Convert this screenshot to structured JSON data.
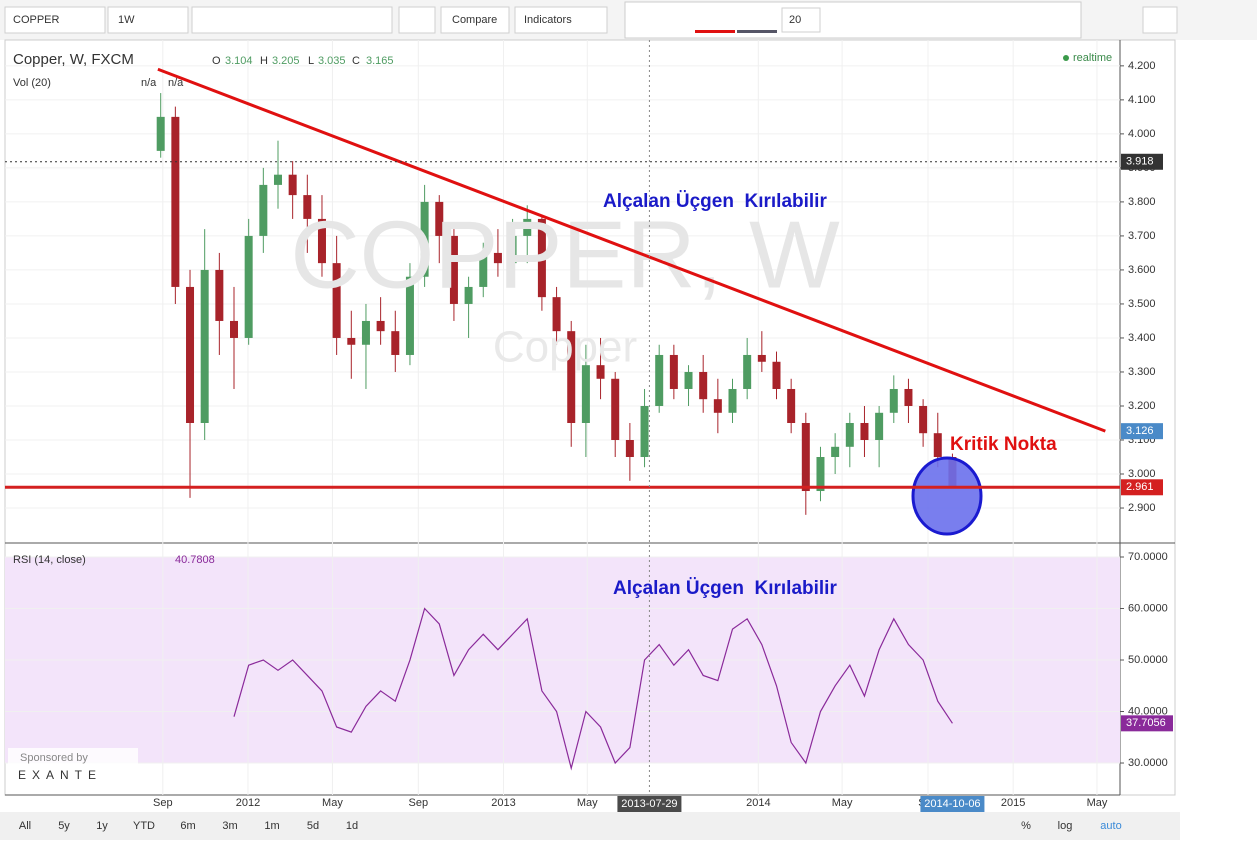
{
  "toolbar": {
    "symbol": "COPPER",
    "interval": "1W",
    "compare": "Compare",
    "indicators": "Indicators",
    "font_size": "20"
  },
  "footer": {
    "ranges": [
      "All",
      "5y",
      "1y",
      "YTD",
      "6m",
      "3m",
      "1m",
      "5d",
      "1d"
    ],
    "options": [
      "%",
      "log",
      "auto"
    ],
    "sponsor": "Sponsored by",
    "sponsor_name": "EXANTE"
  },
  "chart_data": [
    {
      "type": "candlestick",
      "title": "Copper, W, FXCM",
      "status": "realtime",
      "ohlc_labels": [
        "O",
        "H",
        "L",
        "C"
      ],
      "ohlc_values": [
        3.104,
        3.205,
        3.035,
        3.165
      ],
      "volume_title": "Vol (20)",
      "volume_values": [
        "n/a",
        "n/a"
      ],
      "watermark": [
        "COPPER, W",
        "Copper"
      ],
      "up_color": "#4f9c62",
      "down_color": "#a8232a",
      "grid": true,
      "x": [
        "2011-08-29",
        "2011-09-19",
        "2011-10-10",
        "2011-10-31",
        "2011-11-21",
        "2011-12-12",
        "2012-01-02",
        "2012-01-23",
        "2012-02-13",
        "2012-03-05",
        "2012-03-26",
        "2012-04-16",
        "2012-05-07",
        "2012-05-28",
        "2012-06-18",
        "2012-07-09",
        "2012-07-30",
        "2012-08-20",
        "2012-09-10",
        "2012-10-01",
        "2012-10-22",
        "2012-11-12",
        "2012-12-03",
        "2012-12-24",
        "2013-01-14",
        "2013-02-04",
        "2013-02-25",
        "2013-03-18",
        "2013-04-08",
        "2013-04-29",
        "2013-05-20",
        "2013-06-10",
        "2013-07-01",
        "2013-07-22",
        "2013-08-12",
        "2013-09-02",
        "2013-09-23",
        "2013-10-14",
        "2013-11-04",
        "2013-11-25",
        "2013-12-16",
        "2014-01-06",
        "2014-01-27",
        "2014-02-17",
        "2014-03-10",
        "2014-03-31",
        "2014-04-21",
        "2014-05-12",
        "2014-06-02",
        "2014-06-23",
        "2014-07-14",
        "2014-08-04",
        "2014-08-25",
        "2014-09-15",
        "2014-10-06"
      ],
      "open": [
        3.95,
        4.05,
        3.55,
        3.15,
        3.6,
        3.45,
        3.4,
        3.7,
        3.85,
        3.88,
        3.82,
        3.75,
        3.62,
        3.4,
        3.38,
        3.45,
        3.42,
        3.35,
        3.58,
        3.8,
        3.7,
        3.5,
        3.55,
        3.65,
        3.62,
        3.7,
        3.75,
        3.52,
        3.42,
        3.15,
        3.32,
        3.28,
        3.1,
        3.05,
        3.2,
        3.35,
        3.25,
        3.3,
        3.22,
        3.18,
        3.25,
        3.35,
        3.33,
        3.25,
        3.15,
        2.95,
        3.05,
        3.08,
        3.15,
        3.1,
        3.18,
        3.25,
        3.2,
        3.12,
        3.05
      ],
      "high": [
        4.12,
        4.08,
        3.6,
        3.72,
        3.65,
        3.55,
        3.75,
        3.9,
        3.98,
        3.92,
        3.88,
        3.82,
        3.7,
        3.48,
        3.5,
        3.52,
        3.48,
        3.62,
        3.85,
        3.82,
        3.72,
        3.58,
        3.68,
        3.72,
        3.75,
        3.79,
        3.76,
        3.55,
        3.45,
        3.38,
        3.4,
        3.3,
        3.15,
        3.25,
        3.38,
        3.38,
        3.32,
        3.35,
        3.28,
        3.28,
        3.4,
        3.42,
        3.36,
        3.28,
        3.18,
        3.08,
        3.12,
        3.18,
        3.2,
        3.2,
        3.29,
        3.28,
        3.22,
        3.18,
        3.06
      ],
      "low": [
        3.93,
        3.5,
        2.93,
        3.1,
        3.35,
        3.25,
        3.38,
        3.65,
        3.78,
        3.75,
        3.65,
        3.58,
        3.35,
        3.28,
        3.25,
        3.38,
        3.3,
        3.32,
        3.55,
        3.62,
        3.45,
        3.4,
        3.52,
        3.58,
        3.58,
        3.62,
        3.48,
        3.38,
        3.08,
        3.05,
        3.22,
        3.05,
        2.98,
        3.02,
        3.18,
        3.22,
        3.2,
        3.18,
        3.12,
        3.15,
        3.22,
        3.3,
        3.22,
        3.12,
        2.88,
        2.92,
        3.0,
        3.02,
        3.05,
        3.02,
        3.15,
        3.15,
        3.08,
        3.02,
        2.96
      ],
      "close": [
        4.05,
        3.55,
        3.15,
        3.6,
        3.45,
        3.4,
        3.7,
        3.85,
        3.88,
        3.82,
        3.75,
        3.62,
        3.4,
        3.38,
        3.45,
        3.42,
        3.35,
        3.58,
        3.8,
        3.7,
        3.5,
        3.55,
        3.65,
        3.62,
        3.7,
        3.75,
        3.52,
        3.42,
        3.15,
        3.32,
        3.28,
        3.1,
        3.05,
        3.2,
        3.35,
        3.25,
        3.3,
        3.22,
        3.18,
        3.25,
        3.35,
        3.33,
        3.25,
        3.15,
        2.95,
        3.05,
        3.08,
        3.15,
        3.1,
        3.18,
        3.25,
        3.2,
        3.12,
        3.05,
        2.961
      ],
      "xlim": [
        "2011-01-18",
        "2015-06-03"
      ],
      "xticks": [
        {
          "value": "2011-09-01",
          "label": "Sep"
        },
        {
          "value": "2012-01-01",
          "label": "2012"
        },
        {
          "value": "2012-05-01",
          "label": "May"
        },
        {
          "value": "2012-09-01",
          "label": "Sep"
        },
        {
          "value": "2013-01-01",
          "label": "2013"
        },
        {
          "value": "2013-05-01",
          "label": "May"
        },
        {
          "value": "2014-01-01",
          "label": "2014"
        },
        {
          "value": "2014-05-01",
          "label": "May"
        },
        {
          "value": "2014-09-01",
          "label": "Sep"
        },
        {
          "value": "2015-01-01",
          "label": "2015"
        },
        {
          "value": "2015-05-01",
          "label": "May"
        }
      ],
      "crosshair_x": [
        "2013-07-29",
        "2014-10-06"
      ],
      "ylim": [
        2.806,
        4.276
      ],
      "yticks": [
        {
          "value": 2.9,
          "label": "2.900"
        },
        {
          "value": 3.0,
          "label": "3.000"
        },
        {
          "value": 3.1,
          "label": "3.100"
        },
        {
          "value": 3.2,
          "label": "3.200"
        },
        {
          "value": 3.3,
          "label": "3.300"
        },
        {
          "value": 3.4,
          "label": "3.400"
        },
        {
          "value": 3.5,
          "label": "3.500"
        },
        {
          "value": 3.6,
          "label": "3.600"
        },
        {
          "value": 3.7,
          "label": "3.700"
        },
        {
          "value": 3.8,
          "label": "3.800"
        },
        {
          "value": 3.9,
          "label": "3.900"
        },
        {
          "value": 4.0,
          "label": "4.000"
        },
        {
          "value": 4.1,
          "label": "4.100"
        },
        {
          "value": 4.2,
          "label": "4.200"
        }
      ],
      "price_labels": [
        {
          "value": 3.918,
          "color": "#333333",
          "line": "dashed"
        },
        {
          "value": 3.126,
          "color": "#4a8ac8",
          "line": "none"
        },
        {
          "value": 2.961,
          "color": "#d42020",
          "line": "solid"
        }
      ],
      "trendline": {
        "x": [
          "2011-08-25",
          "2015-05-13"
        ],
        "y": [
          4.19,
          3.126
        ],
        "color": "#e01010"
      },
      "annotations": [
        {
          "text": "Alçalan Üçgen  Kırılabilir",
          "color": "#1a1ac8"
        },
        {
          "text": "Kritik Nokta",
          "color": "#e01010"
        }
      ]
    },
    {
      "type": "line",
      "title": "RSI (14, close)",
      "legend_value": 40.7808,
      "color": "#8a2a9a",
      "band": [
        30,
        70
      ],
      "band_color": "#f3e4fa",
      "x": [
        "2011-12-12",
        "2012-01-02",
        "2012-01-23",
        "2012-02-13",
        "2012-03-05",
        "2012-03-26",
        "2012-04-16",
        "2012-05-07",
        "2012-05-28",
        "2012-06-18",
        "2012-07-09",
        "2012-07-30",
        "2012-08-20",
        "2012-09-10",
        "2012-10-01",
        "2012-10-22",
        "2012-11-12",
        "2012-12-03",
        "2012-12-24",
        "2013-01-14",
        "2013-02-04",
        "2013-02-25",
        "2013-03-18",
        "2013-04-08",
        "2013-04-29",
        "2013-05-20",
        "2013-06-10",
        "2013-07-01",
        "2013-07-22",
        "2013-08-12",
        "2013-09-02",
        "2013-09-23",
        "2013-10-14",
        "2013-11-04",
        "2013-11-25",
        "2013-12-16",
        "2014-01-06",
        "2014-01-27",
        "2014-02-17",
        "2014-03-10",
        "2014-03-31",
        "2014-04-21",
        "2014-05-12",
        "2014-06-02",
        "2014-06-23",
        "2014-07-14",
        "2014-08-04",
        "2014-08-25",
        "2014-09-15",
        "2014-10-06"
      ],
      "values": [
        39,
        49,
        50,
        48,
        50,
        47,
        44,
        37,
        36,
        41,
        44,
        42,
        50,
        60,
        57,
        47,
        52,
        55,
        52,
        55,
        58,
        44,
        40,
        29,
        40,
        37,
        30,
        33,
        50,
        53,
        49,
        52,
        47,
        46,
        56,
        58,
        53,
        45,
        34,
        30,
        40,
        45,
        49,
        43,
        52,
        58,
        53,
        50,
        42,
        37.7056
      ],
      "ylim": [
        23.79,
        71.75
      ],
      "yticks": [
        {
          "value": 30,
          "label": "30.0000"
        },
        {
          "value": 40,
          "label": "40.0000"
        },
        {
          "value": 50,
          "label": "50.0000"
        },
        {
          "value": 60,
          "label": "60.0000"
        },
        {
          "value": 70,
          "label": "70.0000"
        }
      ],
      "annotations": [
        {
          "text": "Alçalan Üçgen  Kırılabilir",
          "color": "#1a1ac8"
        }
      ]
    }
  ]
}
